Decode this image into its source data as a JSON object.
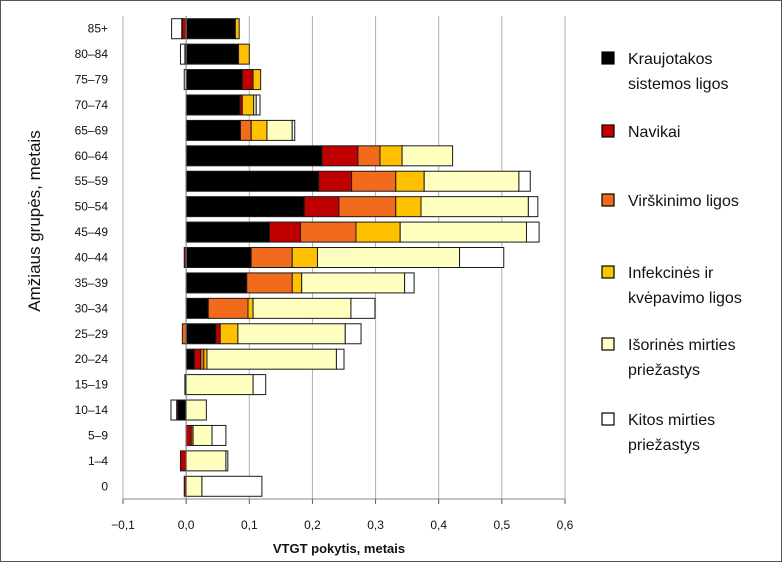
{
  "chart_data": {
    "type": "bar",
    "orientation": "horizontal",
    "stacked": true,
    "xlabel": "VTGT pokytis, metais",
    "ylabel": "Amžiaus grupės, metais",
    "xlim": [
      -0.1,
      0.6
    ],
    "xticks": [
      -0.1,
      0.0,
      0.1,
      0.2,
      0.3,
      0.4,
      0.5,
      0.6
    ],
    "xtick_labels": [
      "−0,1",
      "0,0",
      "0,1",
      "0,2",
      "0,3",
      "0,4",
      "0,5",
      "0,6"
    ],
    "grid": "vertical",
    "legend_position": "right",
    "categories": [
      "85+",
      "80–84",
      "75–79",
      "70–74",
      "65–69",
      "60–64",
      "55–59",
      "50–54",
      "45–49",
      "40–44",
      "35–39",
      "30–34",
      "25–29",
      "20–24",
      "15–19",
      "10–14",
      "5–9",
      "1–4",
      "0"
    ],
    "series": [
      {
        "name": "Kraujotakos sistemos ligos",
        "color": "#000000",
        "values": [
          0.078,
          0.083,
          0.089,
          0.085,
          0.086,
          0.215,
          0.21,
          0.187,
          0.132,
          0.103,
          0.096,
          0.035,
          0.047,
          0.013,
          -0.002,
          -0.013,
          0.0,
          0.0,
          0.0
        ]
      },
      {
        "name": "Navikai",
        "color": "#c00000",
        "values": [
          -0.006,
          -0.002,
          0.017,
          0.004,
          0.0,
          0.057,
          0.052,
          0.055,
          0.049,
          -0.003,
          0.0,
          0.0,
          0.007,
          0.01,
          0.0,
          -0.002,
          0.008,
          -0.009,
          -0.003
        ]
      },
      {
        "name": "Virškinimo ligos",
        "color": "#f26a1b",
        "values": [
          -0.001,
          0.0,
          0.0,
          0.0,
          0.017,
          0.035,
          0.07,
          0.09,
          0.088,
          0.065,
          0.072,
          0.063,
          -0.006,
          0.005,
          0.0,
          0.0,
          0.003,
          0.0,
          0.0
        ]
      },
      {
        "name": "Infekcinės ir kvėpavimo ligos",
        "color": "#ffc000",
        "values": [
          0.006,
          0.017,
          0.012,
          0.018,
          0.025,
          0.035,
          0.045,
          0.04,
          0.07,
          0.04,
          0.015,
          0.008,
          0.028,
          0.005,
          0.0,
          0.0,
          0.0,
          0.0,
          0.0
        ]
      },
      {
        "name": "Išorinės mirties priežastys",
        "color": "#ffffc0",
        "values": [
          0.0,
          0.0,
          0.0,
          0.004,
          0.04,
          0.08,
          0.15,
          0.17,
          0.2,
          0.225,
          0.163,
          0.155,
          0.17,
          0.205,
          0.106,
          0.032,
          0.03,
          0.063,
          0.025
        ]
      },
      {
        "name": "Kitos mirties priežastys",
        "color": "#ffffff",
        "values": [
          -0.016,
          -0.007,
          -0.003,
          0.006,
          0.004,
          0.0,
          0.018,
          0.015,
          0.02,
          0.07,
          0.015,
          0.038,
          0.025,
          0.012,
          0.02,
          -0.009,
          0.022,
          0.003,
          0.095
        ]
      }
    ]
  }
}
